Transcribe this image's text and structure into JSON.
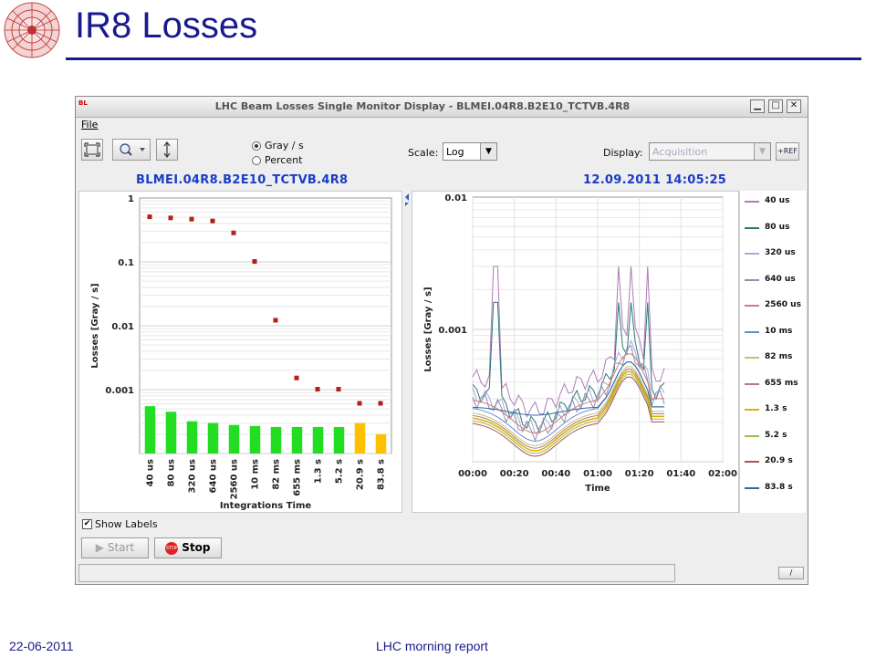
{
  "slide": {
    "title": "IR8 Losses",
    "footer_date": "22-06-2011",
    "footer_center": "LHC morning report"
  },
  "window": {
    "title": "LHC Beam Losses Single Monitor Display - BLMEI.04R8.B2E10_TCTVB.4R8",
    "app_icon": "BL",
    "minimize_icon": "minimize-icon",
    "maximize_icon": "maximize-icon",
    "close_icon": "close-icon"
  },
  "menu": {
    "file": "File"
  },
  "toolbar": {
    "unit_gray": "Gray / s",
    "unit_percent": "Percent",
    "scale_label": "Scale:",
    "scale_value": "Log",
    "display_label": "Display:",
    "display_value": "Acquisition",
    "ref_button": "+REF"
  },
  "heads": {
    "monitor": "BLMEI.04R8.B2E10_TCTVB.4R8",
    "timestamp": "12.09.2011 14:05:25"
  },
  "left_chart": {
    "type": "scatter+bar",
    "ylabel": "Losses [Gray / s]",
    "xlabel": "Integrations Time",
    "yscale": "log",
    "ylim": [
      0.0001,
      1
    ],
    "yticks": [
      "1",
      "0.1",
      "0.01",
      "0.001"
    ],
    "categories": [
      "40 us",
      "80 us",
      "320 us",
      "640 us",
      "2560 us",
      "10 ms",
      "82 ms",
      "655 ms",
      "1.3 s",
      "5.2 s",
      "20.9 s",
      "83.8 s"
    ],
    "points": [
      0.5,
      0.48,
      0.46,
      0.43,
      0.28,
      0.1,
      0.012,
      0.0015,
      0.001,
      0.001,
      0.0006,
      0.0006
    ],
    "bars": [
      0.00055,
      0.00045,
      0.00032,
      0.0003,
      0.00028,
      0.00027,
      0.00026,
      0.00026,
      0.00026,
      0.00026,
      0.0003,
      0.0002
    ],
    "bar_colors": [
      "#22dd22",
      "#22dd22",
      "#22dd22",
      "#22dd22",
      "#22dd22",
      "#22dd22",
      "#22dd22",
      "#22dd22",
      "#22dd22",
      "#22dd22",
      "#ffc000",
      "#ffc000"
    ],
    "point_color": "#b41e14"
  },
  "right_chart": {
    "type": "line",
    "ylabel": "Losses [Gray / s]",
    "xlabel": "Time",
    "yscale": "log",
    "ylim": [
      0.0001,
      0.01
    ],
    "yticks": [
      "0.01",
      "0.001"
    ],
    "xticks": [
      "00:00",
      "00:20",
      "00:40",
      "01:00",
      "01:20",
      "01:40",
      "02:00"
    ]
  },
  "legend": [
    {
      "label": "40 us",
      "color": "#b07ab8"
    },
    {
      "label": "80 us",
      "color": "#2a7a78"
    },
    {
      "label": "320 us",
      "color": "#b0a8d0"
    },
    {
      "label": "640 us",
      "color": "#9090b0"
    },
    {
      "label": "2560 us",
      "color": "#d07a7a"
    },
    {
      "label": "10 ms",
      "color": "#6a8ad0"
    },
    {
      "label": "82 ms",
      "color": "#c8c070"
    },
    {
      "label": "655 ms",
      "color": "#b07a80"
    },
    {
      "label": "1.3 s",
      "color": "#e0b000"
    },
    {
      "label": "5.2 s",
      "color": "#90c050"
    },
    {
      "label": "20.9 s",
      "color": "#b05050"
    },
    {
      "label": "83.8 s",
      "color": "#2a6aa0"
    }
  ],
  "controls": {
    "show_labels": "Show Labels",
    "start": "Start",
    "stop": "Stop",
    "stop_icon_text": "STOP"
  }
}
